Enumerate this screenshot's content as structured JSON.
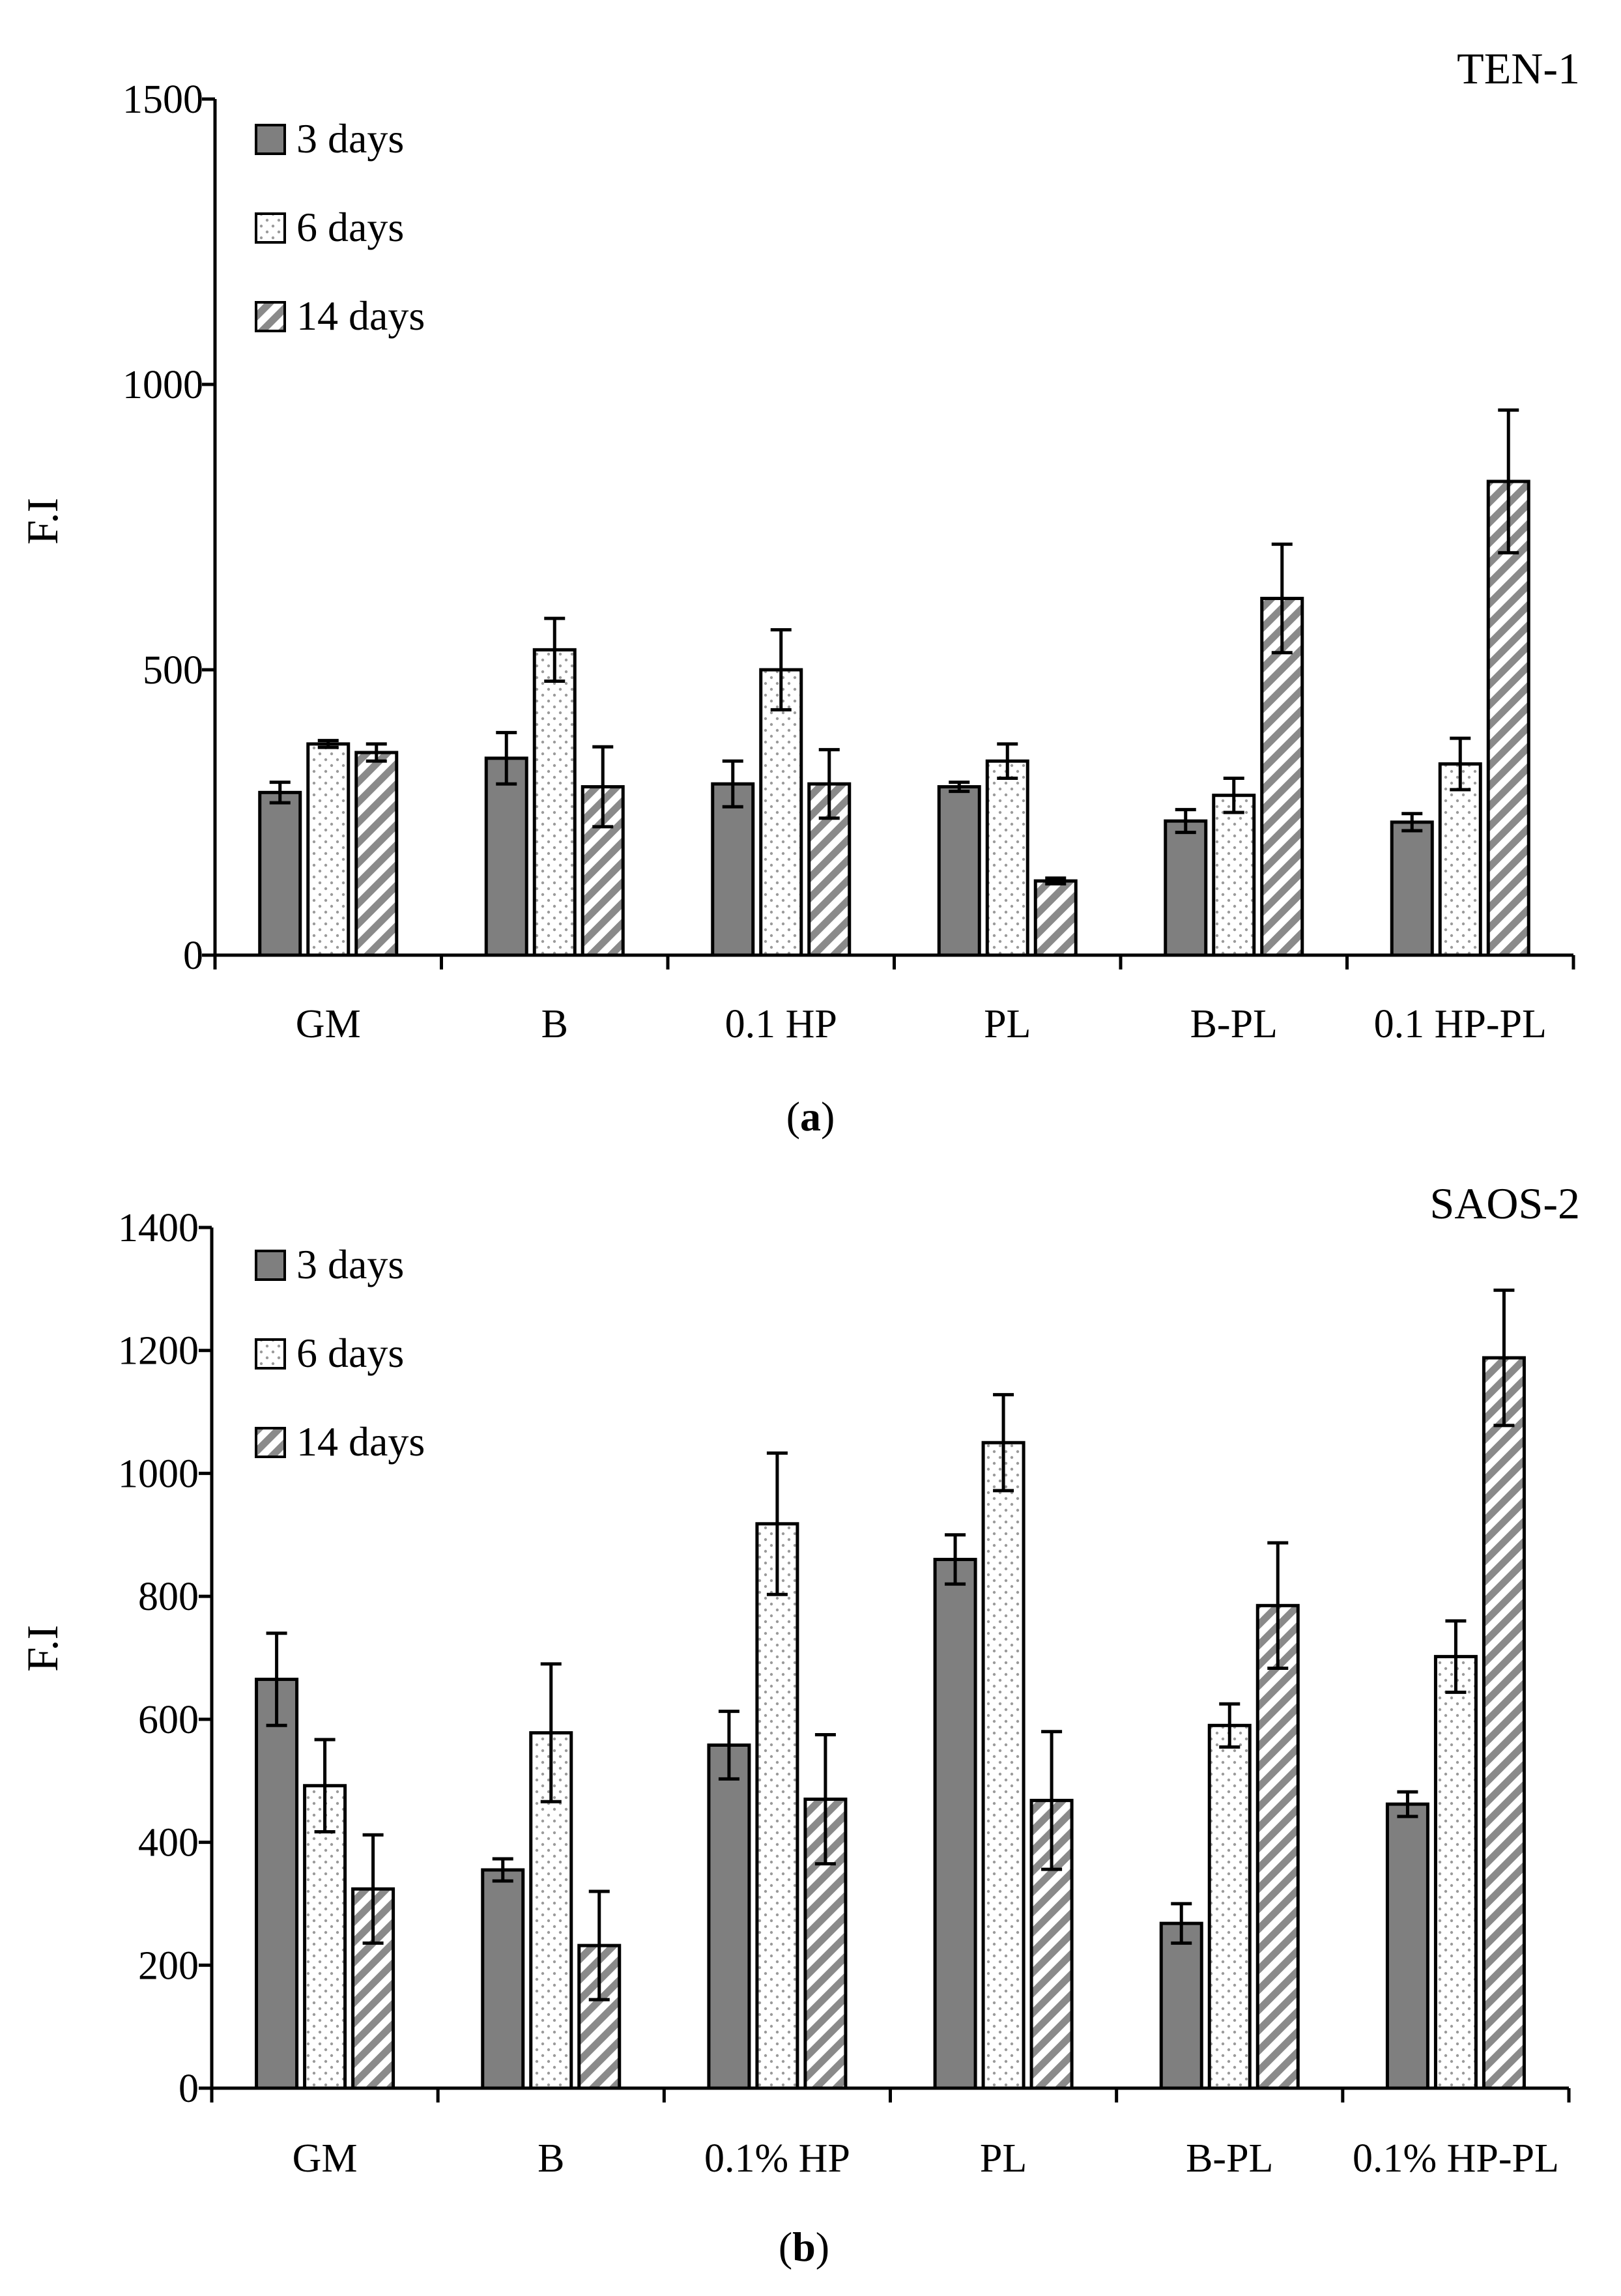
{
  "chart_data": [
    {
      "type": "bar",
      "panel": "a",
      "panel_label_open": "(",
      "panel_label_letter": "a",
      "panel_label_close": ")",
      "corner_label": "TEN-1",
      "ylabel": "F.I",
      "xlabel": "",
      "ylim": [
        0,
        1500
      ],
      "yticks": [
        0,
        500,
        1000,
        1500
      ],
      "categories": [
        "GM",
        "B",
        "0.1 HP",
        "PL",
        "B-PL",
        "0.1 HP-PL"
      ],
      "legend_position": "top-left",
      "series": [
        {
          "name": "3 days",
          "pattern": "solid",
          "values": [
            285,
            345,
            300,
            295,
            235,
            233
          ],
          "errors": [
            18,
            45,
            40,
            8,
            20,
            15
          ]
        },
        {
          "name": "6 days",
          "pattern": "dots",
          "values": [
            370,
            535,
            500,
            340,
            280,
            335
          ],
          "errors": [
            6,
            55,
            70,
            30,
            30,
            45
          ]
        },
        {
          "name": "14 days",
          "pattern": "hatch",
          "values": [
            355,
            295,
            300,
            130,
            625,
            830
          ],
          "errors": [
            15,
            70,
            60,
            5,
            95,
            125
          ]
        }
      ]
    },
    {
      "type": "bar",
      "panel": "b",
      "panel_label_open": "(",
      "panel_label_letter": "b",
      "panel_label_close": ")",
      "corner_label": "SAOS-2",
      "ylabel": "F.I",
      "xlabel": "",
      "ylim": [
        0,
        1400
      ],
      "yticks": [
        0,
        200,
        400,
        600,
        800,
        1000,
        1200,
        1400
      ],
      "categories": [
        "GM",
        "B",
        "0.1% HP",
        "PL",
        "B-PL",
        "0.1% HP-PL"
      ],
      "legend_position": "top-left",
      "series": [
        {
          "name": "3 days",
          "pattern": "solid",
          "values": [
            665,
            355,
            558,
            860,
            268,
            462
          ],
          "errors": [
            75,
            18,
            55,
            40,
            32,
            20
          ]
        },
        {
          "name": "6 days",
          "pattern": "dots",
          "values": [
            492,
            578,
            918,
            1050,
            590,
            702
          ],
          "errors": [
            75,
            112,
            115,
            78,
            35,
            58
          ]
        },
        {
          "name": "14 days",
          "pattern": "hatch",
          "values": [
            324,
            232,
            470,
            468,
            785,
            1188
          ],
          "errors": [
            88,
            88,
            105,
            112,
            102,
            110
          ]
        }
      ]
    }
  ]
}
